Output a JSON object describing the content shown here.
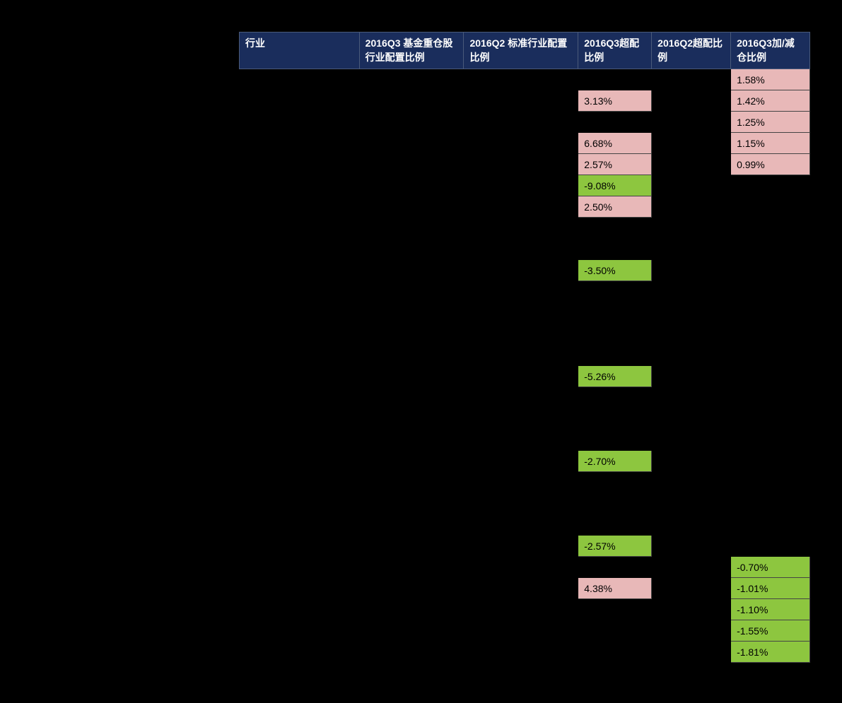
{
  "table": {
    "type": "table",
    "header_bg": "#1a2d5c",
    "header_text_color": "#ffffff",
    "pink_bg": "#e8b8b8",
    "green_bg": "#8dc63f",
    "body_bg": "#000000",
    "font_size": 14,
    "columns": [
      {
        "label": "行业",
        "width": 170
      },
      {
        "label": "2016Q3 基金重仓股行业配置比例",
        "width": 148
      },
      {
        "label": "2016Q2 标准行业配置比例",
        "width": 162
      },
      {
        "label": "2016Q3超配比例",
        "width": 104
      },
      {
        "label": "2016Q2超配比例",
        "width": 112
      },
      {
        "label": "2016Q3加/减仓比例",
        "width": 112
      }
    ],
    "rows": [
      {
        "c3": null,
        "c5": "1.58%",
        "c5_cls": "pink"
      },
      {
        "c3": "3.13%",
        "c3_cls": "pink",
        "c5": "1.42%",
        "c5_cls": "pink"
      },
      {
        "c3": null,
        "c5": "1.25%",
        "c5_cls": "pink"
      },
      {
        "c3": "6.68%",
        "c3_cls": "pink",
        "c5": "1.15%",
        "c5_cls": "pink"
      },
      {
        "c3": "2.57%",
        "c3_cls": "pink",
        "c5": "0.99%",
        "c5_cls": "pink"
      },
      {
        "c3": "-9.08%",
        "c3_cls": "green",
        "c5": null
      },
      {
        "c3": "2.50%",
        "c3_cls": "pink",
        "c5": null
      },
      {
        "c3": null,
        "c5": null
      },
      {
        "c3": null,
        "c5": null
      },
      {
        "c3": "-3.50%",
        "c3_cls": "green",
        "c5": null
      },
      {
        "c3": null,
        "c5": null
      },
      {
        "c3": null,
        "c5": null
      },
      {
        "c3": null,
        "c5": null
      },
      {
        "c3": null,
        "c5": null
      },
      {
        "c3": "-5.26%",
        "c3_cls": "green",
        "c5": null
      },
      {
        "c3": null,
        "c5": null
      },
      {
        "c3": null,
        "c5": null
      },
      {
        "c3": null,
        "c5": null
      },
      {
        "c3": "-2.70%",
        "c3_cls": "green",
        "c5": null
      },
      {
        "c3": null,
        "c5": null
      },
      {
        "c3": null,
        "c5": null
      },
      {
        "c3": null,
        "c5": null
      },
      {
        "c3": "-2.57%",
        "c3_cls": "green",
        "c5": null
      },
      {
        "c3": null,
        "c5": "-0.70%",
        "c5_cls": "green"
      },
      {
        "c3": "4.38%",
        "c3_cls": "pink",
        "c5": "-1.01%",
        "c5_cls": "green"
      },
      {
        "c3": null,
        "c5": "-1.10%",
        "c5_cls": "green"
      },
      {
        "c3": null,
        "c5": "-1.55%",
        "c5_cls": "green"
      },
      {
        "c3": null,
        "c5": "-1.81%",
        "c5_cls": "green"
      }
    ]
  }
}
